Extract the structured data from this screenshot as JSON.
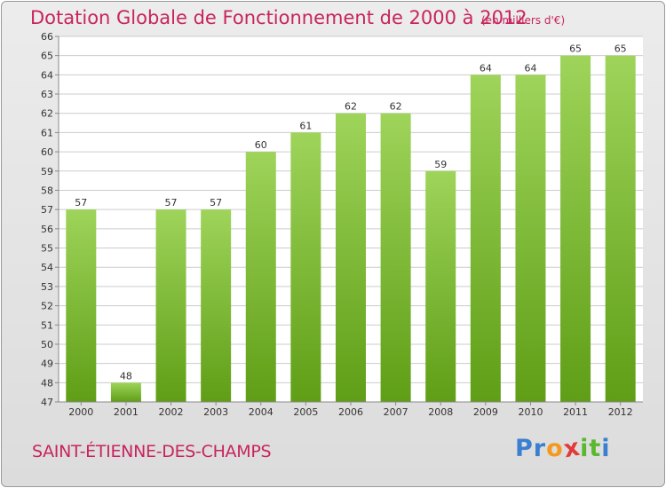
{
  "header": {
    "title": "Dotation Globale de Fonctionnement de 2000 à 2012",
    "subtitle": "(en milliers d'€)"
  },
  "footer": {
    "commune": "SAINT-ÉTIENNE-DES-CHAMPS",
    "brand": "Proxiti",
    "brand_letters": [
      "P",
      "r",
      "o",
      "x",
      "i",
      "t",
      "i"
    ],
    "brand_colors": [
      "#3b7fd0",
      "#3b7fd0",
      "#f39a1e",
      "#e23a3a",
      "#59b830",
      "#59b830",
      "#3b7fd0"
    ]
  },
  "colors": {
    "bar_top": "#9ed45a",
    "bar_bottom": "#5f9e16",
    "title": "#c8245e",
    "grid": "#cccccc",
    "plot_bg": "#ffffff"
  },
  "chart_data": {
    "type": "bar",
    "title": "Dotation Globale de Fonctionnement de 2000 à 2012",
    "subtitle": "(en milliers d'€)",
    "xlabel": "",
    "ylabel": "",
    "categories": [
      "2000",
      "2001",
      "2002",
      "2003",
      "2004",
      "2005",
      "2006",
      "2007",
      "2008",
      "2009",
      "2010",
      "2011",
      "2012"
    ],
    "values": [
      57,
      48,
      57,
      57,
      60,
      61,
      62,
      62,
      59,
      64,
      64,
      65,
      65
    ],
    "ylim": [
      47,
      66
    ],
    "yticks": [
      47,
      48,
      49,
      50,
      51,
      52,
      53,
      54,
      55,
      56,
      57,
      58,
      59,
      60,
      61,
      62,
      63,
      64,
      65,
      66
    ],
    "grid": true,
    "data_labels": true
  }
}
